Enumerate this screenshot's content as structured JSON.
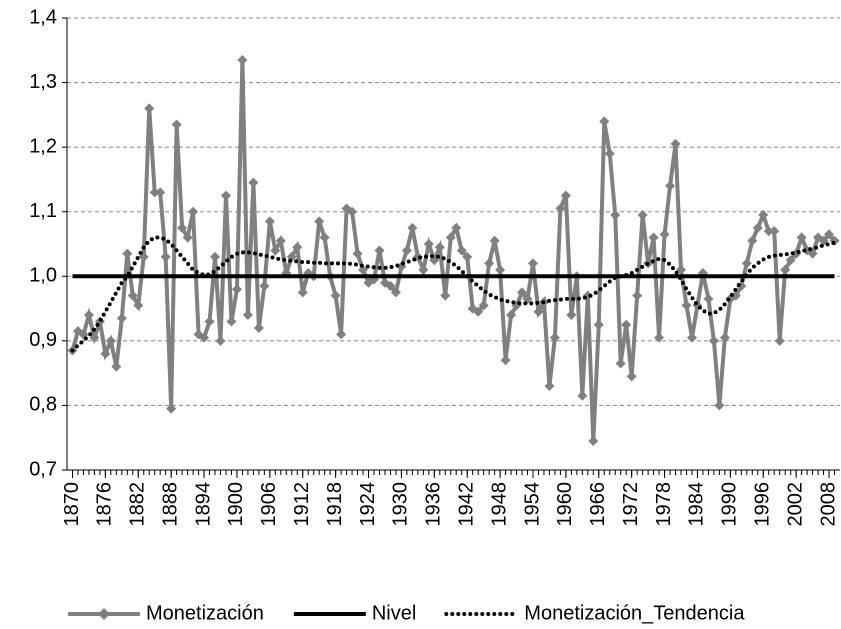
{
  "chart_data": {
    "type": "line",
    "x": [
      1870,
      1871,
      1872,
      1873,
      1874,
      1875,
      1876,
      1877,
      1878,
      1879,
      1880,
      1881,
      1882,
      1883,
      1884,
      1885,
      1886,
      1887,
      1888,
      1889,
      1890,
      1891,
      1892,
      1893,
      1894,
      1895,
      1896,
      1897,
      1898,
      1899,
      1900,
      1901,
      1902,
      1903,
      1904,
      1905,
      1906,
      1907,
      1908,
      1909,
      1910,
      1911,
      1912,
      1913,
      1914,
      1915,
      1916,
      1917,
      1918,
      1919,
      1920,
      1921,
      1922,
      1923,
      1924,
      1925,
      1926,
      1927,
      1928,
      1929,
      1930,
      1931,
      1932,
      1933,
      1934,
      1935,
      1936,
      1937,
      1938,
      1939,
      1940,
      1941,
      1942,
      1943,
      1944,
      1945,
      1946,
      1947,
      1948,
      1949,
      1950,
      1951,
      1952,
      1953,
      1954,
      1955,
      1956,
      1957,
      1958,
      1959,
      1960,
      1961,
      1962,
      1963,
      1964,
      1965,
      1966,
      1967,
      1968,
      1969,
      1970,
      1971,
      1972,
      1973,
      1974,
      1975,
      1976,
      1977,
      1978,
      1979,
      1980,
      1981,
      1982,
      1983,
      1984,
      1985,
      1986,
      1987,
      1988,
      1989,
      1990,
      1991,
      1992,
      1993,
      1994,
      1995,
      1996,
      1997,
      1998,
      1999,
      2000,
      2001,
      2002,
      2003,
      2004,
      2005,
      2006,
      2007,
      2008,
      2009
    ],
    "series": [
      {
        "name": "Monetización",
        "color": "#808080",
        "style": "marker",
        "values": [
          0.885,
          0.915,
          0.91,
          0.94,
          0.905,
          0.93,
          0.88,
          0.9,
          0.86,
          0.935,
          1.035,
          0.97,
          0.955,
          1.03,
          1.26,
          1.13,
          1.13,
          1.03,
          0.795,
          1.235,
          1.075,
          1.06,
          1.1,
          0.91,
          0.905,
          0.93,
          1.03,
          0.9,
          1.125,
          0.93,
          0.98,
          1.335,
          0.94,
          1.145,
          0.92,
          0.985,
          1.085,
          1.04,
          1.055,
          1.005,
          1.03,
          1.045,
          0.975,
          1.005,
          1.0,
          1.085,
          1.06,
          1.0,
          0.97,
          0.91,
          1.105,
          1.1,
          1.035,
          1.01,
          0.99,
          0.995,
          1.04,
          0.99,
          0.985,
          0.975,
          1.015,
          1.04,
          1.075,
          1.03,
          1.01,
          1.05,
          1.025,
          1.045,
          0.97,
          1.06,
          1.075,
          1.04,
          1.03,
          0.95,
          0.945,
          0.955,
          1.02,
          1.055,
          1.01,
          0.87,
          0.94,
          0.955,
          0.975,
          0.965,
          1.02,
          0.945,
          0.96,
          0.83,
          0.905,
          1.105,
          1.125,
          0.94,
          1.0,
          0.815,
          0.97,
          0.745,
          0.925,
          1.24,
          1.19,
          1.095,
          0.865,
          0.925,
          0.845,
          0.97,
          1.095,
          1.02,
          1.06,
          0.905,
          1.065,
          1.14,
          1.205,
          1.01,
          0.955,
          0.905,
          0.955,
          1.005,
          0.965,
          0.9,
          0.8,
          0.905,
          0.965,
          0.97,
          0.985,
          1.02,
          1.055,
          1.075,
          1.095,
          1.07,
          1.07,
          0.9,
          1.01,
          1.025,
          1.035,
          1.06,
          1.04,
          1.035,
          1.06,
          1.055,
          1.065,
          1.055
        ]
      },
      {
        "name": "Nivel",
        "color": "#000000",
        "style": "solid",
        "values": [
          1,
          1,
          1,
          1,
          1,
          1,
          1,
          1,
          1,
          1,
          1,
          1,
          1,
          1,
          1,
          1,
          1,
          1,
          1,
          1,
          1,
          1,
          1,
          1,
          1,
          1,
          1,
          1,
          1,
          1,
          1,
          1,
          1,
          1,
          1,
          1,
          1,
          1,
          1,
          1,
          1,
          1,
          1,
          1,
          1,
          1,
          1,
          1,
          1,
          1,
          1,
          1,
          1,
          1,
          1,
          1,
          1,
          1,
          1,
          1,
          1,
          1,
          1,
          1,
          1,
          1,
          1,
          1,
          1,
          1,
          1,
          1,
          1,
          1,
          1,
          1,
          1,
          1,
          1,
          1,
          1,
          1,
          1,
          1,
          1,
          1,
          1,
          1,
          1,
          1,
          1,
          1,
          1,
          1,
          1,
          1,
          1,
          1,
          1,
          1,
          1,
          1,
          1,
          1,
          1,
          1,
          1,
          1,
          1,
          1,
          1,
          1,
          1,
          1,
          1,
          1,
          1,
          1,
          1,
          1,
          1,
          1,
          1,
          1,
          1,
          1,
          1,
          1,
          1,
          1,
          1,
          1,
          1,
          1,
          1,
          1,
          1,
          1,
          1,
          1
        ]
      },
      {
        "name": "Monetización_Tendencia",
        "color": "#000000",
        "style": "dotted",
        "values": [
          0.885,
          0.893,
          0.9,
          0.908,
          0.918,
          0.93,
          0.945,
          0.96,
          0.975,
          0.99,
          1.0,
          1.015,
          1.03,
          1.045,
          1.055,
          1.06,
          1.06,
          1.057,
          1.05,
          1.04,
          1.03,
          1.02,
          1.01,
          1.005,
          1.002,
          1.003,
          1.008,
          1.015,
          1.023,
          1.03,
          1.035,
          1.037,
          1.037,
          1.036,
          1.034,
          1.032,
          1.03,
          1.028,
          1.026,
          1.025,
          1.024,
          1.023,
          1.022,
          1.022,
          1.021,
          1.021,
          1.02,
          1.02,
          1.02,
          1.02,
          1.02,
          1.019,
          1.018,
          1.016,
          1.015,
          1.014,
          1.013,
          1.013,
          1.014,
          1.016,
          1.019,
          1.022,
          1.025,
          1.028,
          1.03,
          1.031,
          1.031,
          1.03,
          1.027,
          1.022,
          1.016,
          1.008,
          1.0,
          0.992,
          0.985,
          0.978,
          0.972,
          0.968,
          0.964,
          0.962,
          0.96,
          0.959,
          0.958,
          0.958,
          0.958,
          0.959,
          0.96,
          0.962,
          0.963,
          0.964,
          0.965,
          0.965,
          0.965,
          0.966,
          0.968,
          0.972,
          0.978,
          0.985,
          0.992,
          0.998,
          1.0,
          1.002,
          1.005,
          1.01,
          1.015,
          1.02,
          1.024,
          1.027,
          1.025,
          1.018,
          1.008,
          0.995,
          0.98,
          0.967,
          0.955,
          0.947,
          0.942,
          0.943,
          0.948,
          0.957,
          0.968,
          0.98,
          0.992,
          1.003,
          1.013,
          1.02,
          1.026,
          1.03,
          1.032,
          1.033,
          1.034,
          1.035,
          1.037,
          1.039,
          1.041,
          1.043,
          1.045,
          1.048,
          1.05,
          1.052
        ]
      }
    ],
    "xlim": [
      1869,
      2010
    ],
    "xticks": [
      1870,
      1876,
      1882,
      1888,
      1894,
      1900,
      1906,
      1912,
      1918,
      1924,
      1930,
      1936,
      1942,
      1948,
      1954,
      1960,
      1966,
      1972,
      1978,
      1984,
      1990,
      1996,
      2002,
      2008
    ],
    "ylim": [
      0.7,
      1.4
    ],
    "yticks": [
      {
        "value": 0.7,
        "label": "0,7"
      },
      {
        "value": 0.8,
        "label": "0,8"
      },
      {
        "value": 0.9,
        "label": "0,9"
      },
      {
        "value": 1.0,
        "label": "1,0"
      },
      {
        "value": 1.1,
        "label": "1,1"
      },
      {
        "value": 1.2,
        "label": "1,2"
      },
      {
        "value": 1.3,
        "label": "1,3"
      },
      {
        "value": 1.4,
        "label": "1,4"
      }
    ],
    "grid": true,
    "legend": "bottom"
  }
}
